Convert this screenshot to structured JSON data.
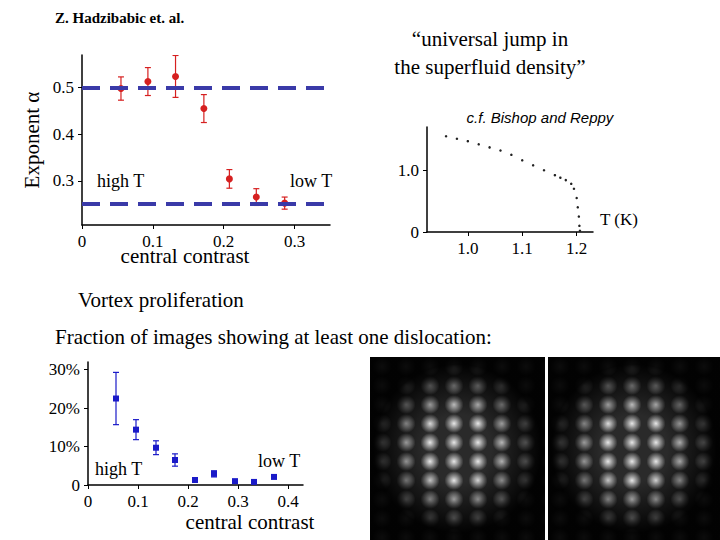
{
  "chart_data": [
    {
      "type": "scatter",
      "title": "Z. Hadzibabic et. al.",
      "x_label": "central contrast",
      "y_label": "Exponent α",
      "x": [
        0.055,
        0.093,
        0.132,
        0.172,
        0.208,
        0.246,
        0.286
      ],
      "values": [
        0.498,
        0.513,
        0.524,
        0.455,
        0.304,
        0.265,
        0.252
      ],
      "errors": [
        0.025,
        0.03,
        0.045,
        0.03,
        0.02,
        0.018,
        0.013
      ],
      "color": "#d62020",
      "marker": "circle",
      "xlim": [
        0,
        0.35
      ],
      "xticks": [
        0,
        0.1,
        0.2,
        0.3
      ],
      "ylim": [
        0.205,
        0.57
      ],
      "yticks": [
        0.3,
        0.4,
        0.5
      ],
      "reference_lines": {
        "values": [
          0.5,
          0.25
        ],
        "color": "#3a3aa8",
        "line_style": "dashed"
      },
      "annotations": [
        "high T",
        "low T"
      ],
      "grid": false
    },
    {
      "type": "scatter",
      "title": [
        "“universal jump in",
        "the superfluid density”"
      ],
      "subtitle": "c.f. Bishop and Reppy",
      "x_label": "T (K)",
      "x": [
        0.96,
        0.98,
        1.0,
        1.02,
        1.04,
        1.06,
        1.08,
        1.1,
        1.12,
        1.14,
        1.16,
        1.17,
        1.18,
        1.19,
        1.195,
        1.2,
        1.202,
        1.204,
        1.205,
        1.206
      ],
      "values": [
        1.55,
        1.51,
        1.47,
        1.42,
        1.37,
        1.32,
        1.25,
        1.16,
        1.08,
        1.0,
        0.92,
        0.88,
        0.84,
        0.78,
        0.7,
        0.55,
        0.4,
        0.25,
        0.1,
        0.02
      ],
      "color": "#222222",
      "marker": "dot",
      "xlim": [
        0.925,
        1.23
      ],
      "xticks": [
        {
          "value": 1.0,
          "label": "1.0"
        },
        1.1,
        1.2
      ],
      "ylim": [
        0,
        1.7
      ],
      "yticks": [
        0,
        {
          "value": 1.0,
          "label": "1.0"
        }
      ],
      "grid": false
    },
    {
      "type": "scatter",
      "title": "Vortex proliferation",
      "subtitle": "Fraction of images showing at least one dislocation:",
      "x_label": "central contrast",
      "x": [
        0.056,
        0.096,
        0.136,
        0.174,
        0.214,
        0.252,
        0.294,
        0.332,
        0.372
      ],
      "values": [
        22.5,
        14.4,
        9.7,
        6.5,
        1.3,
        2.9,
        1.0,
        0.8,
        2.1
      ],
      "errors": [
        6.8,
        2.6,
        1.8,
        1.6,
        0.5,
        0.8,
        0.3,
        0.3,
        0.3
      ],
      "color": "#1a1ac8",
      "marker": "square",
      "xlim": [
        0,
        0.43
      ],
      "xticks": [
        0,
        0.1,
        0.2,
        0.3,
        0.4
      ],
      "ylim": [
        0,
        32
      ],
      "yticks": [
        0,
        {
          "value": 10,
          "label": "10%"
        },
        {
          "value": 20,
          "label": "20%"
        },
        {
          "value": 30,
          "label": "30%"
        }
      ],
      "annotations": [
        "high T",
        "low T"
      ],
      "grid": false
    }
  ]
}
